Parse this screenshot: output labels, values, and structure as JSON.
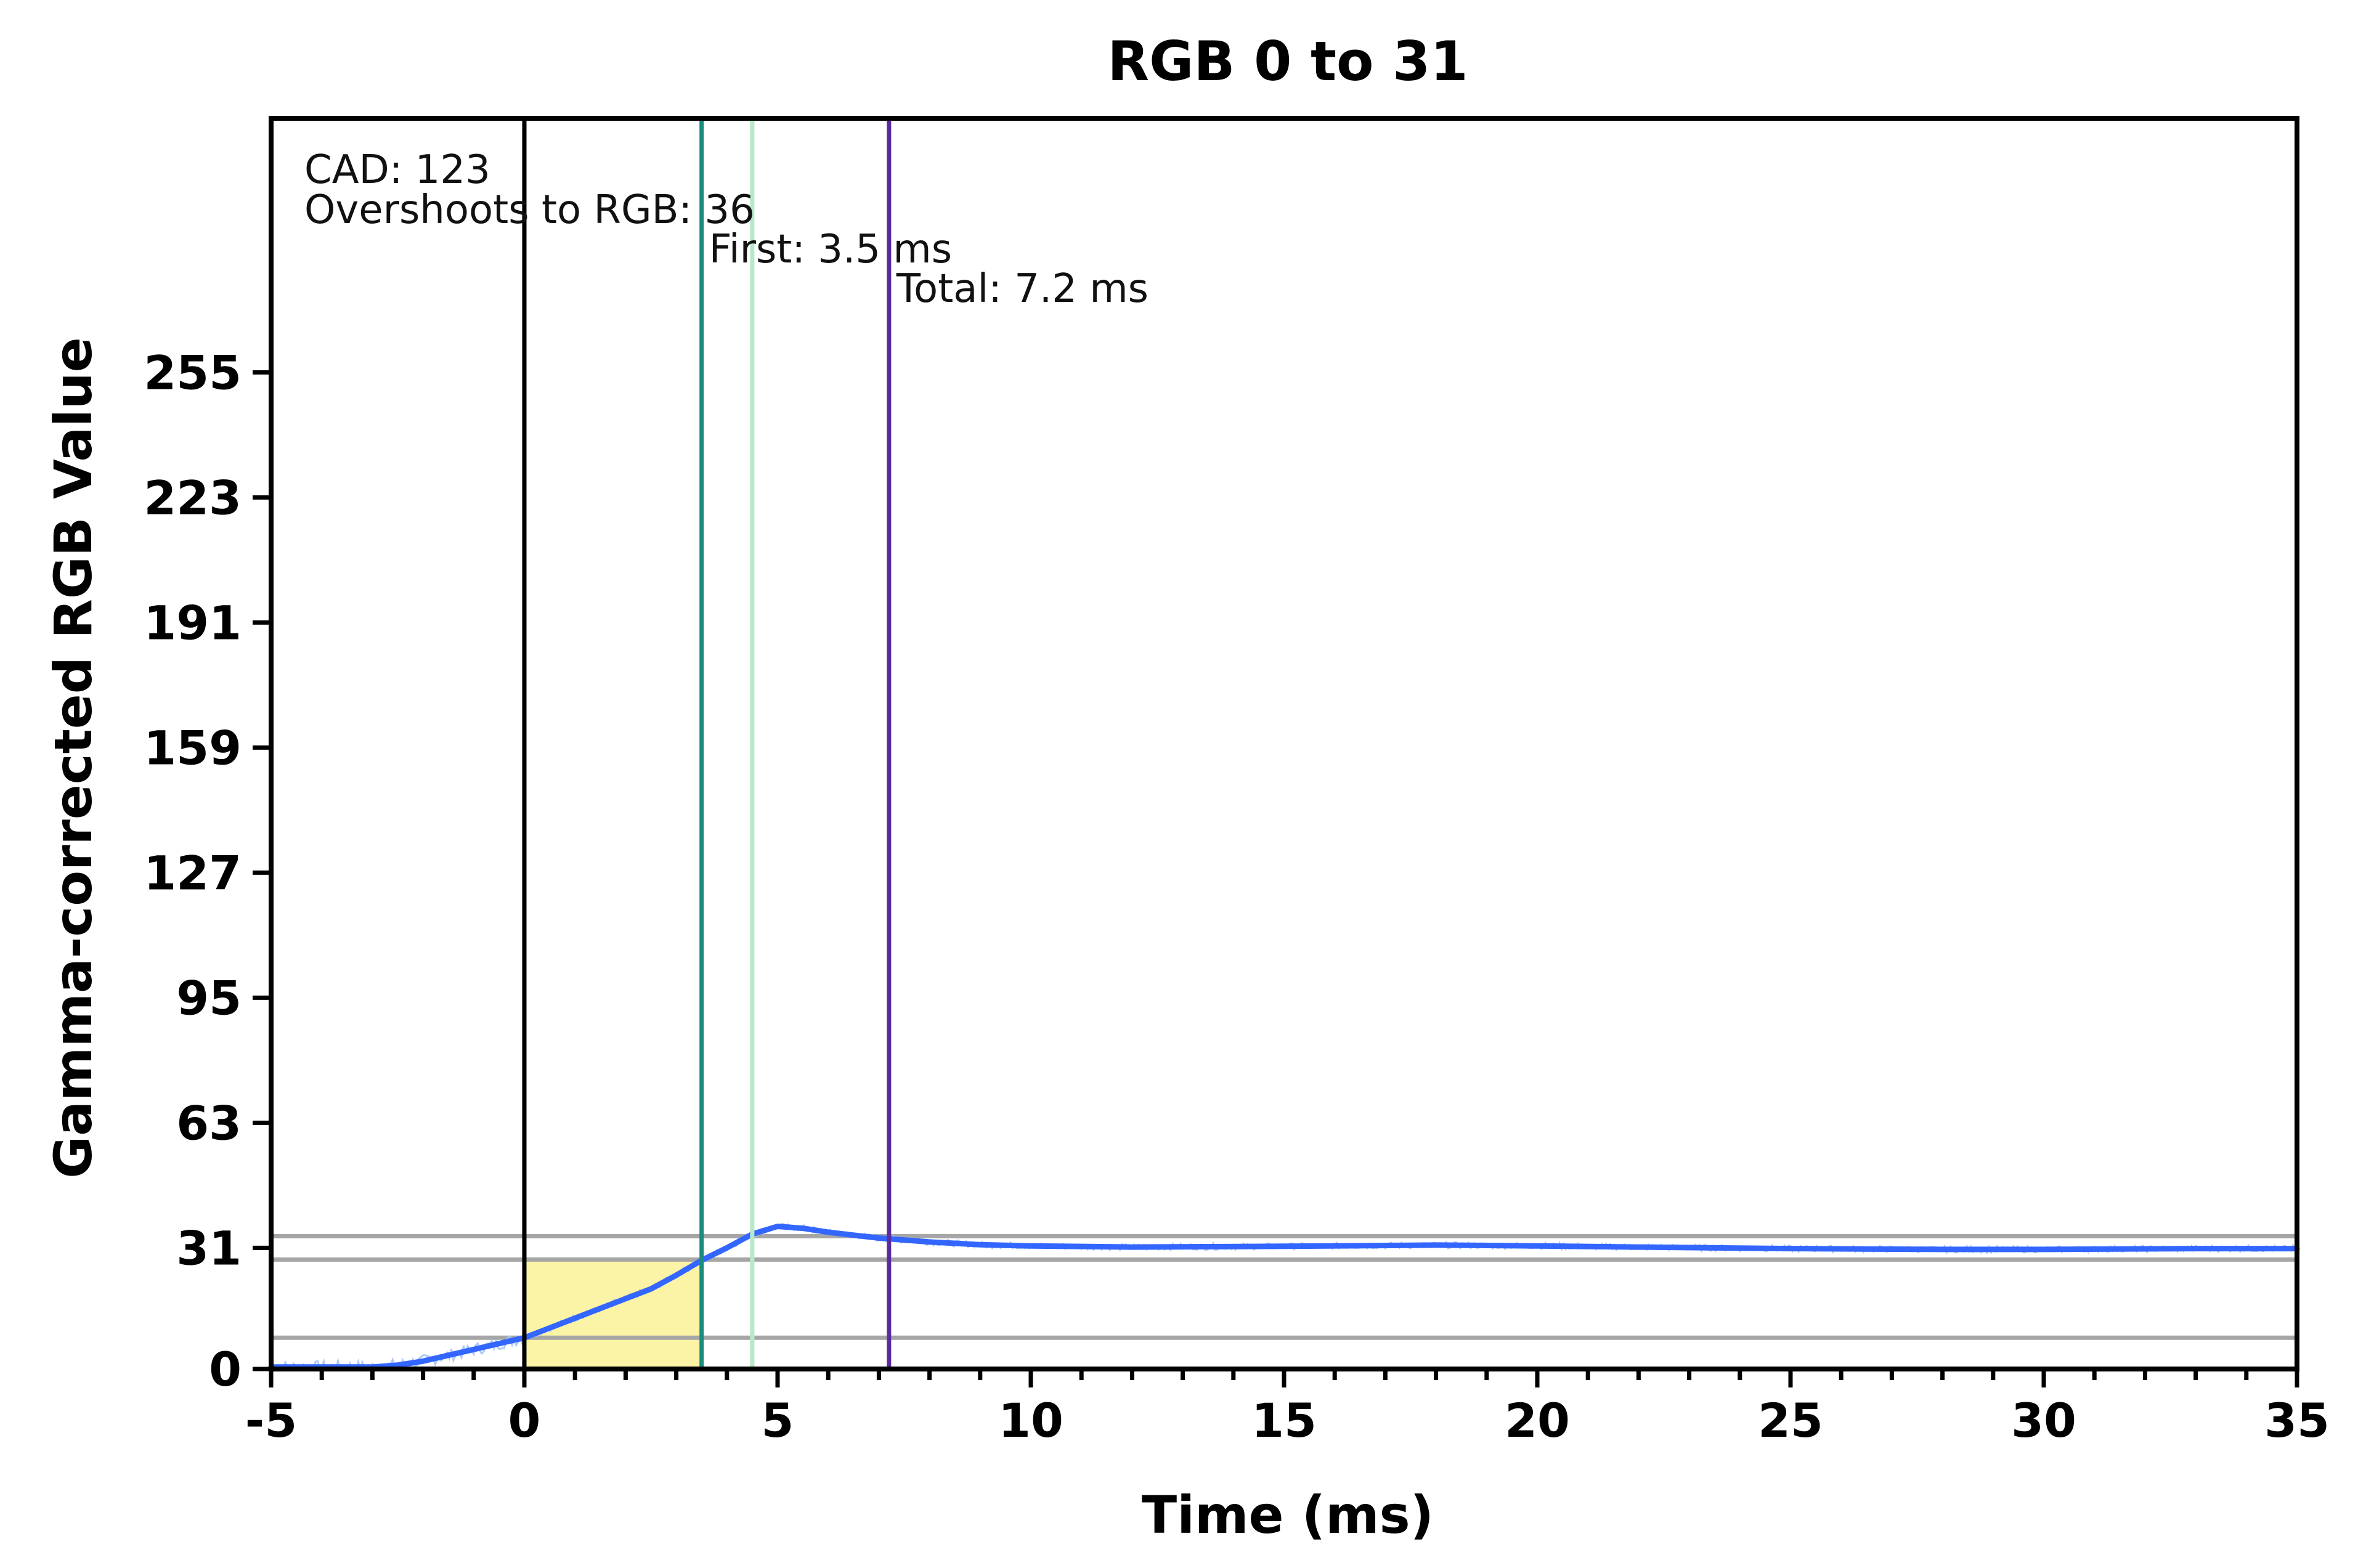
{
  "chart_data": {
    "type": "line",
    "title": "RGB 0 to 31",
    "xlabel": "Time (ms)",
    "ylabel": "Gamma-corrected RGB Value",
    "xlim": [
      -5,
      35
    ],
    "ylim": [
      0,
      320
    ],
    "x_ticks": [
      -5,
      0,
      5,
      10,
      15,
      20,
      25,
      30,
      35
    ],
    "x_tick_labels": [
      "-5",
      "0",
      "5",
      "10",
      "15",
      "20",
      "25",
      "30",
      "35"
    ],
    "x_minor_step": 1,
    "y_ticks": [
      0,
      31,
      63,
      95,
      127,
      159,
      191,
      223,
      255
    ],
    "y_tick_labels": [
      "0",
      "31",
      "63",
      "95",
      "127",
      "159",
      "191",
      "223",
      "255"
    ],
    "grid": false,
    "colors": {
      "series": "#3366ff",
      "raw": "#a9c4f3",
      "shade": "#fbf3a6",
      "reference_lines": "#a6a6a6",
      "start_line": "#000000",
      "first_line": "#1a8c7e",
      "alt_line": "#b8e8c9",
      "total_line": "#5b2a9e"
    },
    "reference_levels": [
      8,
      28,
      34
    ],
    "shaded_region": {
      "x": [
        0,
        3.5
      ],
      "y_top": 28
    },
    "vertical_markers": [
      {
        "x": 0,
        "role": "start"
      },
      {
        "x": 3.5,
        "role": "first"
      },
      {
        "x": 4.5,
        "role": "alt"
      },
      {
        "x": 7.2,
        "role": "total"
      }
    ],
    "annotations": {
      "cad": "CAD: 123",
      "overshoot": "Overshoots to RGB: 36",
      "first": "First: 3.5 ms",
      "total": "Total: 7.2 ms"
    },
    "series": [
      {
        "x": [
          -5,
          -4,
          -3,
          -2.5,
          -2,
          -1.5,
          -1,
          -0.5,
          0,
          0.5,
          1,
          1.5,
          2,
          2.5,
          3,
          3.5,
          4,
          4.5,
          5,
          5.5,
          6,
          7,
          8,
          9,
          10,
          12,
          15,
          18,
          20,
          22,
          25,
          28,
          30,
          33,
          35
        ],
        "y": [
          0.5,
          0.5,
          0.5,
          1,
          2,
          3.5,
          5,
          6.5,
          8,
          10.5,
          13,
          15.5,
          18,
          20.5,
          24,
          27.8,
          31,
          34.5,
          36.5,
          36,
          35,
          33.5,
          32.5,
          31.8,
          31.5,
          31.2,
          31.4,
          31.7,
          31.5,
          31.2,
          30.8,
          30.6,
          30.6,
          30.8,
          30.8
        ]
      }
    ]
  }
}
